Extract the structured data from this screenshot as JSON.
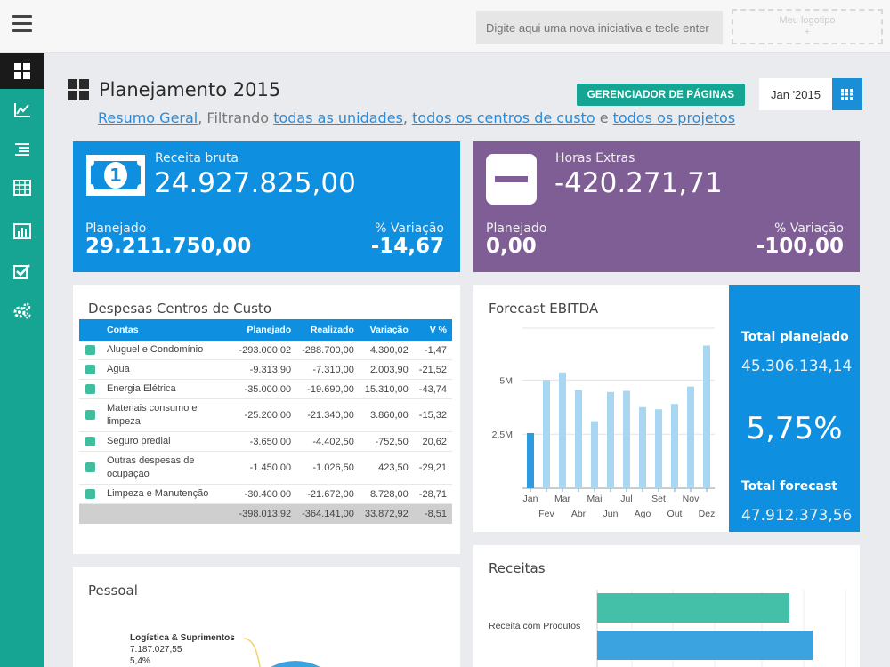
{
  "topbar": {
    "initiative_placeholder": "Digite aqui uma nova iniciativa e tecle enter",
    "logo_placeholder_line1": "Meu logotipo",
    "logo_placeholder_line2": "+"
  },
  "sidebar": {
    "items": [
      {
        "name": "dashboard",
        "icon": "dashboard-grid-icon",
        "active": true
      },
      {
        "name": "charts",
        "icon": "line-chart-icon",
        "active": false
      },
      {
        "name": "list",
        "icon": "list-icon",
        "active": false
      },
      {
        "name": "table",
        "icon": "table-icon",
        "active": false
      },
      {
        "name": "reports",
        "icon": "bar-chart-icon",
        "active": false
      },
      {
        "name": "tasks",
        "icon": "checkbox-icon",
        "active": false
      },
      {
        "name": "settings",
        "icon": "gears-icon",
        "active": false
      }
    ]
  },
  "header": {
    "title": "Planejamento 2015",
    "filter": {
      "link_resumo": "Resumo Geral",
      "text_filtrando": ", Filtrando ",
      "link_unidades": "todas as unidades",
      "text_comma": ", ",
      "link_centros": "todos os centros de custo",
      "text_e": " e ",
      "link_projetos": "todos os projetos"
    },
    "pages_button": "GERENCIADOR DE PÁGINAS",
    "month": "Jan '2015"
  },
  "kpis": {
    "receita": {
      "label": "Receita bruta",
      "value": "24.927.825,00",
      "plan_label": "Planejado",
      "plan_value": "29.211.750,00",
      "var_label": "% Variação",
      "var_value": "-14,67",
      "color": "#0e8fe0",
      "icon": "money-bill-icon"
    },
    "horas": {
      "label": "Horas Extras",
      "value": "-420.271,71",
      "plan_label": "Planejado",
      "plan_value": "0,00",
      "var_label": "% Variação",
      "var_value": "-100,00",
      "color": "#7e5e94",
      "icon": "minus-square-icon"
    }
  },
  "despesas": {
    "title": "Despesas Centros de Custo",
    "columns": [
      "Contas",
      "Planejado",
      "Realizado",
      "Variação",
      "V %"
    ],
    "rows": [
      {
        "conta": "Aluguel e Condomínio",
        "planejado": "-293.000,02",
        "realizado": "-288.700,00",
        "variacao": "4.300,02",
        "vpct": "-1,47"
      },
      {
        "conta": "Agua",
        "planejado": "-9.313,90",
        "realizado": "-7.310,00",
        "variacao": "2.003,90",
        "vpct": "-21,52"
      },
      {
        "conta": "Energia Elétrica",
        "planejado": "-35.000,00",
        "realizado": "-19.690,00",
        "variacao": "15.310,00",
        "vpct": "-43,74"
      },
      {
        "conta": "Materiais consumo e limpeza",
        "planejado": "-25.200,00",
        "realizado": "-21.340,00",
        "variacao": "3.860,00",
        "vpct": "-15,32"
      },
      {
        "conta": "Seguro predial",
        "planejado": "-3.650,00",
        "realizado": "-4.402,50",
        "variacao": "-752,50",
        "vpct": "20,62"
      },
      {
        "conta": "Outras despesas de ocupação",
        "planejado": "-1.450,00",
        "realizado": "-1.026,50",
        "variacao": "423,50",
        "vpct": "-29,21"
      },
      {
        "conta": "Limpeza e Manutenção",
        "planejado": "-30.400,00",
        "realizado": "-21.672,00",
        "variacao": "8.728,00",
        "vpct": "-28,71"
      }
    ],
    "total": {
      "conta": "",
      "planejado": "-398.013,92",
      "realizado": "-364.141,00",
      "variacao": "33.872,92",
      "vpct": "-8,51"
    }
  },
  "forecast": {
    "title": "Forecast EBITDA",
    "total_planejado_label": "Total planejado",
    "total_planejado_value": "45.306.134,14",
    "pct": "5,75%",
    "total_forecast_label": "Total forecast",
    "total_forecast_value": "47.912.373,56"
  },
  "pessoal": {
    "title": "Pessoal",
    "slice_label": "Logística & Suprimentos",
    "slice_value": "7.187.027,55",
    "slice_pct": "5,4%"
  },
  "receitas": {
    "title": "Receitas",
    "category_label": "Receita com Produtos"
  },
  "chart_data": [
    {
      "type": "bar",
      "title": "Forecast EBITDA",
      "categories": [
        "Jan",
        "Fev",
        "Mar",
        "Abr",
        "Mai",
        "Jun",
        "Jul",
        "Ago",
        "Set",
        "Out",
        "Nov",
        "Dez"
      ],
      "values": [
        2.55,
        5.0,
        5.35,
        4.55,
        3.1,
        4.45,
        4.5,
        3.75,
        3.65,
        3.9,
        4.7,
        6.6
      ],
      "highlight_color": "#2e9ae0",
      "bar_color": "#a9d7f2",
      "y_ticks": [
        "2,5M",
        "5M"
      ],
      "ylim": [
        0,
        7.4
      ],
      "xlabel": "",
      "ylabel": ""
    },
    {
      "type": "bar",
      "title": "Receitas",
      "categories": [
        "Receita com Produtos"
      ],
      "series": [
        {
          "values": [
            1.0
          ],
          "color": "#44bfa8"
        },
        {
          "values": [
            1.1
          ],
          "color": "#3aa3e0"
        }
      ]
    }
  ]
}
